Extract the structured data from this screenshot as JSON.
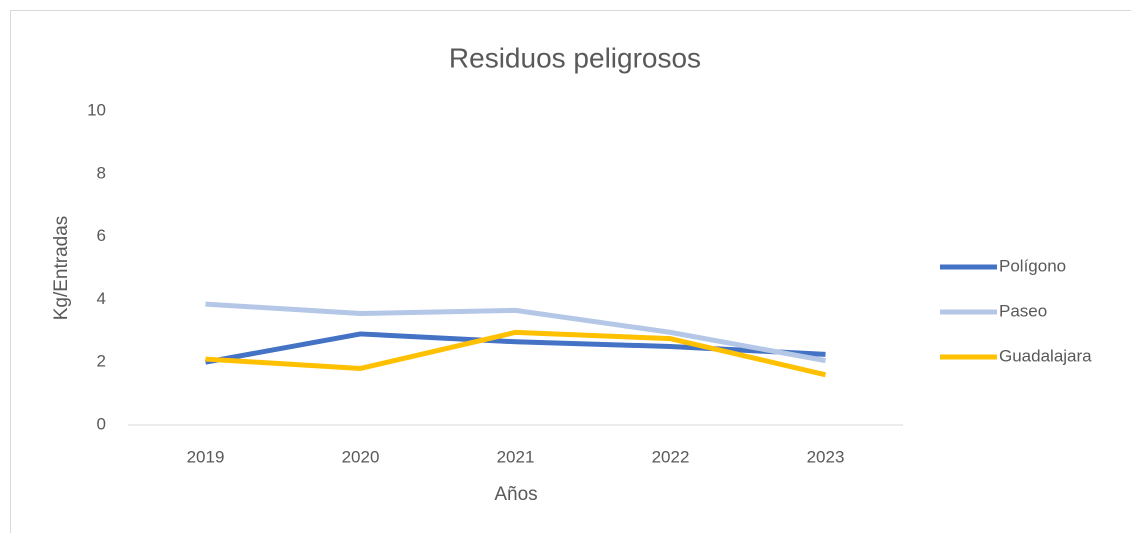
{
  "chart_data": {
    "type": "line",
    "title": "Residuos peligrosos",
    "x_label": "Años",
    "y_label": "Kg/Entradas",
    "categories": [
      "2019",
      "2020",
      "2021",
      "2022",
      "2023"
    ],
    "series": [
      {
        "name": "Polígono",
        "color": "#4472c4",
        "values": [
          2.0,
          2.9,
          2.65,
          2.5,
          2.25
        ]
      },
      {
        "name": "Paseo",
        "color": "#b4c7e7",
        "values": [
          3.85,
          3.55,
          3.65,
          2.95,
          2.05
        ]
      },
      {
        "name": "Guadalajara",
        "color": "#ffc000",
        "values": [
          2.1,
          1.8,
          2.95,
          2.75,
          1.6
        ]
      }
    ],
    "ylim": [
      0,
      10
    ],
    "yticks": [
      0,
      2,
      4,
      6,
      8,
      10
    ],
    "grid": false,
    "legend": "right"
  }
}
